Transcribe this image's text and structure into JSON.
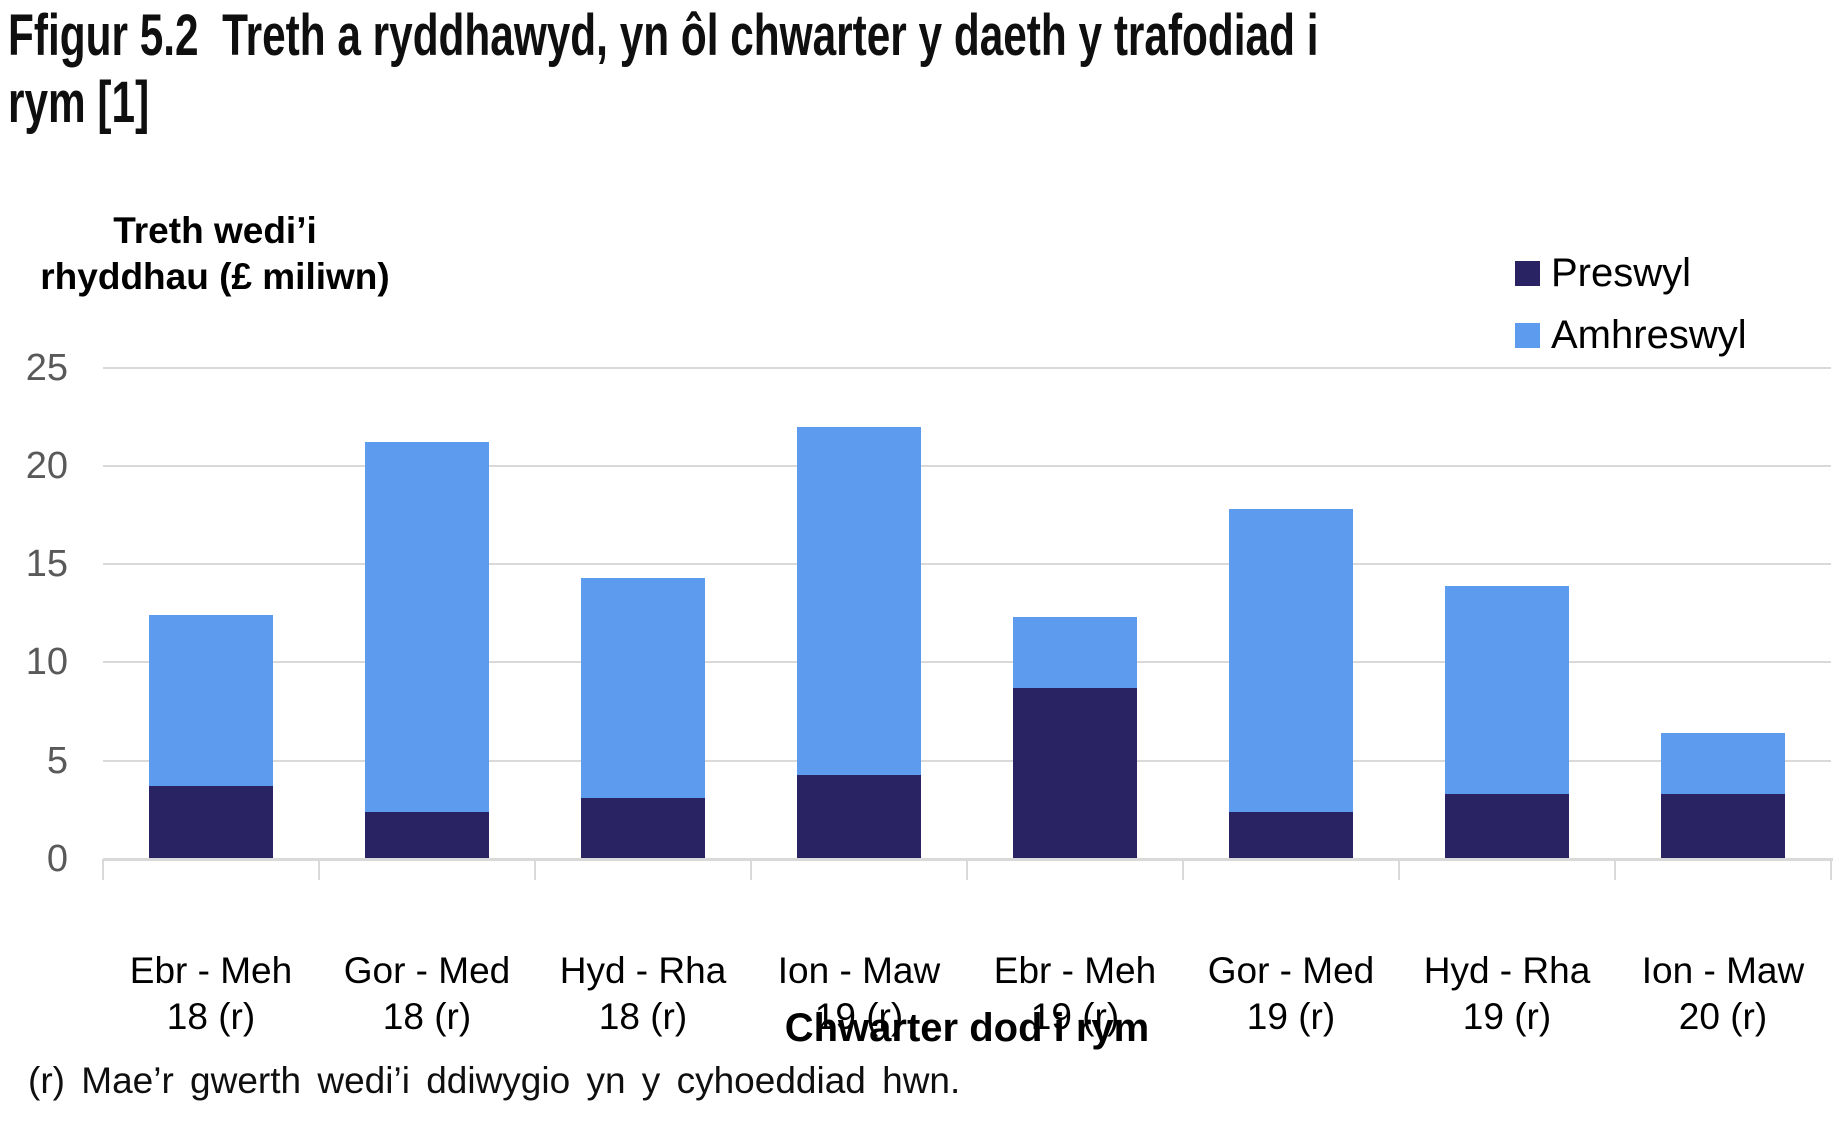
{
  "title": "Ffigur 5.2  Treth a ryddhawyd, yn ôl chwarter y daeth y trafodiad i\nrym [1]",
  "y_axis": {
    "title": "Treth wedi’i\nrhyddhau (£ miliwn)",
    "ticks": [
      25,
      20,
      15,
      10,
      5,
      0
    ]
  },
  "x_axis": {
    "title": "Chwarter dod i rym"
  },
  "legend": [
    {
      "label": "Preswyl",
      "color": "#292364"
    },
    {
      "label": "Amhreswyl",
      "color": "#5d9bee"
    }
  ],
  "footnote": "(r) Mae’r gwerth wedi’i ddiwygio yn y cyhoeddiad hwn.",
  "colors": {
    "preswyl": "#292364",
    "amhreswyl": "#5d9bee",
    "gridline": "#d9d9d9",
    "tick_label": "#595959"
  },
  "chart_data": {
    "type": "bar",
    "stacked": true,
    "title": "Treth a ryddhawyd, yn ôl chwarter y daeth y trafodiad i rym",
    "xlabel": "Chwarter dod i rym",
    "ylabel": "Treth wedi’i rhyddhau (£ miliwn)",
    "ylim": [
      0,
      25
    ],
    "gridlines": [
      5,
      10,
      15,
      20,
      25
    ],
    "grid": true,
    "legend_position": "top-right",
    "categories": [
      "Ebr - Meh\n18 (r)",
      "Gor - Med\n18 (r)",
      "Hyd - Rha\n18 (r)",
      "Ion - Maw\n19 (r)",
      "Ebr - Meh\n19 (r)",
      "Gor - Med\n19 (r)",
      "Hyd - Rha\n19 (r)",
      "Ion - Maw\n20 (r)"
    ],
    "series": [
      {
        "name": "Preswyl",
        "color": "#292364",
        "values": [
          3.7,
          2.4,
          3.1,
          4.3,
          8.7,
          2.4,
          3.3,
          3.3
        ]
      },
      {
        "name": "Amhreswyl",
        "color": "#5d9bee",
        "values": [
          8.7,
          18.8,
          11.2,
          17.7,
          3.6,
          15.4,
          10.6,
          3.1
        ]
      }
    ],
    "totals": [
      12.4,
      21.2,
      14.3,
      22.0,
      12.3,
      17.8,
      13.9,
      6.4
    ]
  }
}
